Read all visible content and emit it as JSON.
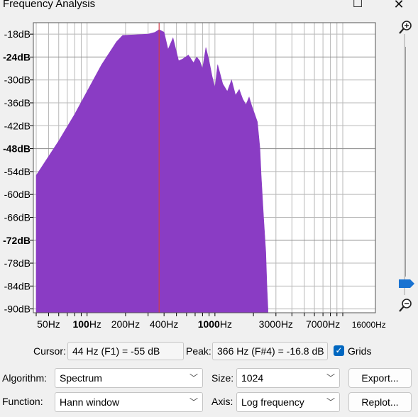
{
  "window": {
    "title": "Frequency Analysis"
  },
  "chart_data": {
    "type": "area",
    "title": "",
    "xlabel": "",
    "ylabel": "",
    "x_scale": "log",
    "xlim": [
      38,
      18000
    ],
    "ylim": [
      -91,
      -15
    ],
    "x_tick_labels": [
      {
        "hz": 50,
        "label": "50Hz"
      },
      {
        "hz": 100,
        "label": "100Hz",
        "bold_part": "100"
      },
      {
        "hz": 200,
        "label": "200Hz"
      },
      {
        "hz": 400,
        "label": "400Hz"
      },
      {
        "hz": 1000,
        "label": "1000Hz",
        "bold_part": "1000"
      },
      {
        "hz": 3000,
        "label": "3000Hz"
      },
      {
        "hz": 7000,
        "label": "7000Hz"
      },
      {
        "hz": 16000,
        "label": "16000Hz"
      }
    ],
    "y_tick_labels": [
      {
        "db": -18,
        "label": "-18dB"
      },
      {
        "db": -24,
        "label": "-24dB",
        "bold": true
      },
      {
        "db": -30,
        "label": "-30dB"
      },
      {
        "db": -36,
        "label": "-36dB"
      },
      {
        "db": -42,
        "label": "-42dB"
      },
      {
        "db": -48,
        "label": "-48dB",
        "bold": true
      },
      {
        "db": -54,
        "label": "-54dB"
      },
      {
        "db": -60,
        "label": "-60dB"
      },
      {
        "db": -66,
        "label": "-66dB"
      },
      {
        "db": -72,
        "label": "-72dB",
        "bold": true
      },
      {
        "db": -78,
        "label": "-78dB"
      },
      {
        "db": -84,
        "label": "-84dB"
      },
      {
        "db": -90,
        "label": "-90dB"
      }
    ],
    "series": [
      {
        "x": [
          40,
          60,
          80,
          100,
          130,
          170,
          190,
          230,
          260,
          300,
          340,
          366,
          400,
          430,
          470,
          520,
          560,
          620,
          680,
          720,
          760,
          800,
          850,
          900,
          950,
          1000,
          1050,
          1150,
          1250,
          1350,
          1450,
          1550,
          1650,
          1750,
          1850,
          1950,
          2050,
          2150,
          2250,
          2300,
          2400,
          2500,
          2550,
          2600
        ],
        "y": [
          -55,
          -46,
          -39,
          -33,
          -26,
          -20,
          -18.3,
          -18.2,
          -18.1,
          -18,
          -17.5,
          -16.8,
          -17.5,
          -22,
          -19,
          -25,
          -24.5,
          -23.5,
          -25.5,
          -24,
          -25,
          -27,
          -21.5,
          -25,
          -29,
          -32,
          -26,
          -31,
          -33,
          -30,
          -34,
          -32.5,
          -35,
          -36.5,
          -34.5,
          -37,
          -39,
          -41,
          -48,
          -55,
          -66,
          -75,
          -84,
          -90
        ]
      }
    ],
    "fill_color": "#8a3cc4",
    "cursor_line": {
      "hz": 366,
      "color": "#d23c48"
    },
    "grid": true
  },
  "readouts": {
    "cursor_label": "Cursor:",
    "cursor_value": "44 Hz (F1) = -55 dB",
    "peak_label": "Peak:",
    "peak_value": "366 Hz (F#4) = -16.8 dB",
    "grids_label": "Grids"
  },
  "controls": {
    "algorithm_label": "Algorithm:",
    "algorithm_value": "Spectrum",
    "size_label": "Size:",
    "size_value": "1024",
    "function_label": "Function:",
    "function_value": "Hann window",
    "axis_label": "Axis:",
    "axis_value": "Log frequency",
    "export_label": "Export...",
    "replot_label": "Replot..."
  },
  "icons": {
    "zoom_in": "zoom-in-icon",
    "zoom_out": "zoom-out-icon",
    "maximize": "maximize-icon",
    "close": "close-icon",
    "chevron": "chevron-down-icon",
    "checkbox": "checkmark-icon"
  },
  "colors": {
    "accent": "#0067c0",
    "slider_thumb": "#1a73d1"
  }
}
